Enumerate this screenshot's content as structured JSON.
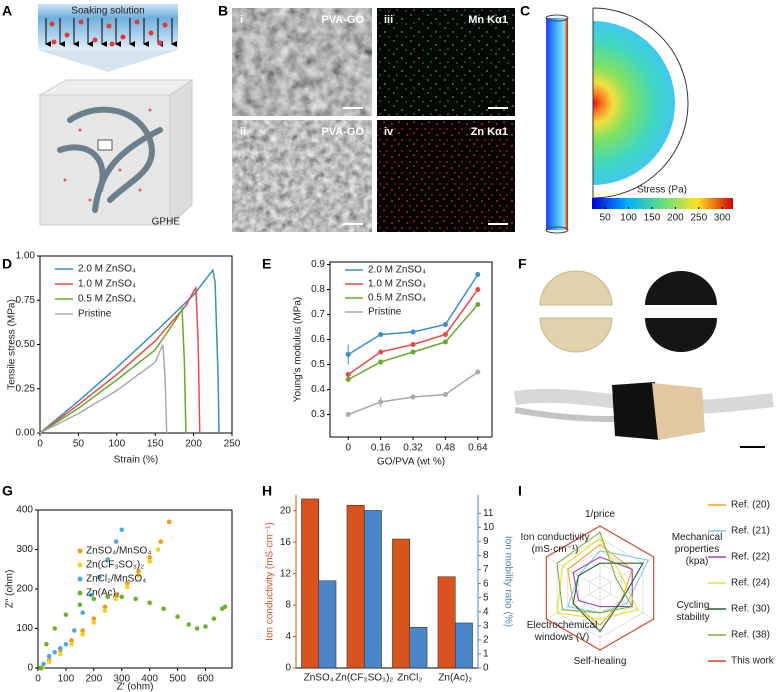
{
  "panel_labels": [
    "A",
    "B",
    "C",
    "D",
    "E",
    "F",
    "G",
    "H",
    "I"
  ],
  "panel_a": {
    "top_label": "Soaking solution",
    "bottom_label": "GPHE"
  },
  "panel_b": {
    "images": [
      {
        "index": "i",
        "label": "PVA-GO"
      },
      {
        "index": "iii",
        "label": "Mn Kα1"
      },
      {
        "index": "ii",
        "label": "PVA-GO"
      },
      {
        "index": "iv",
        "label": "Zn Kα1"
      }
    ]
  },
  "panel_c": {
    "colorbar_label": "Stress (Pa)",
    "colorbar_lim": [
      22,
      323
    ],
    "colorbar_ticks": [
      50,
      100,
      150,
      200,
      250,
      300
    ]
  },
  "chart_data": [
    {
      "type": "line",
      "x_label": "Strain (%)",
      "y_label": "Tensile stress (MPa)",
      "xlim": [
        0,
        250
      ],
      "xticks": [
        0,
        50,
        100,
        150,
        200,
        250
      ],
      "ylim": [
        0,
        1
      ],
      "yticks": [
        {
          "value": 0,
          "label": "0.00"
        },
        0.25,
        {
          "value": 0.5,
          "label": "0.50"
        },
        0.75,
        {
          "value": 1,
          "label": "1.00"
        }
      ],
      "series": [
        {
          "name": "2.0 M ZnSO₄",
          "color": "#3a8fc4",
          "x": [
            0,
            25,
            50,
            100,
            150,
            200,
            225,
            228,
            232,
            233
          ],
          "values": [
            0,
            0.09,
            0.18,
            0.37,
            0.57,
            0.78,
            0.92,
            0.85,
            0.3,
            0
          ]
        },
        {
          "name": "1.0 M ZnSO₄",
          "color": "#e84a4a",
          "x": [
            0,
            50,
            100,
            150,
            190,
            200,
            203,
            206,
            208
          ],
          "values": [
            0,
            0.16,
            0.33,
            0.52,
            0.72,
            0.8,
            0.82,
            0.5,
            0
          ]
        },
        {
          "name": "0.5 M ZnSO₄",
          "color": "#6aaa2a",
          "x": [
            0,
            50,
            100,
            150,
            180,
            185,
            188,
            190
          ],
          "values": [
            0,
            0.14,
            0.3,
            0.47,
            0.66,
            0.7,
            0.4,
            0
          ]
        },
        {
          "name": "Pristine",
          "color": "#aaaaaa",
          "x": [
            0,
            50,
            100,
            150,
            160,
            163,
            165
          ],
          "values": [
            0,
            0.11,
            0.24,
            0.4,
            0.5,
            0.3,
            0
          ]
        }
      ]
    },
    {
      "type": "line",
      "x_label": "GO/PVA (wt %)",
      "y_label": "Young's modulus (MPa)",
      "markers": true,
      "x": [
        0,
        0.16,
        0.32,
        0.48,
        0.64
      ],
      "xlim": [
        -0.09,
        0.71
      ],
      "xticks": [
        0,
        0.16,
        0.32,
        0.48,
        0.64
      ],
      "ylim": [
        0.21,
        0.91
      ],
      "yticks": [
        0.3,
        0.4,
        0.5,
        0.6,
        0.7,
        0.8,
        0.9
      ],
      "series": [
        {
          "name": "2.0 M ZnSO₄",
          "color": "#3a8fc4",
          "values": [
            0.54,
            0.62,
            0.63,
            0.66,
            0.86
          ],
          "errors": [
            0.04,
            0.01,
            0.01,
            0.01,
            0.01
          ]
        },
        {
          "name": "1.0 M ZnSO₄",
          "color": "#e84a4a",
          "values": [
            0.46,
            0.55,
            0.58,
            0.62,
            0.8
          ],
          "errors": [
            0.01,
            0.01,
            0.01,
            0.01,
            0.01
          ]
        },
        {
          "name": "0.5 M ZnSO₄",
          "color": "#6aaa2a",
          "values": [
            0.44,
            0.51,
            0.55,
            0.59,
            0.74
          ],
          "errors": [
            0.01,
            0.01,
            0.01,
            0.01,
            0.01
          ]
        },
        {
          "name": "Pristine",
          "color": "#aaaaaa",
          "values": [
            0.3,
            0.35,
            0.37,
            0.38,
            0.47
          ],
          "errors": [
            0.01,
            0.02,
            0.01,
            0.01,
            0.01
          ]
        }
      ]
    },
    {
      "type": "scatter",
      "x_label": "Z′ (ohm)",
      "y_label": "Z″ (ohm)",
      "xlim": [
        0,
        695
      ],
      "xticks": [
        0,
        100,
        200,
        300,
        400,
        500,
        600
      ],
      "ylim": [
        0,
        400
      ],
      "yticks": [
        0,
        100,
        200,
        300,
        400
      ],
      "series": [
        {
          "name": "ZnSO₄/MnSO₄",
          "color": "#f39c12",
          "x": [
            15,
            40,
            80,
            120,
            160,
            200,
            240,
            280,
            320,
            360,
            400,
            440,
            470
          ],
          "values": [
            0,
            20,
            45,
            70,
            95,
            125,
            155,
            185,
            215,
            245,
            280,
            320,
            370
          ]
        },
        {
          "name": "Zn(CF₃SO₃)₂",
          "color": "#f2d21b",
          "x": [
            15,
            40,
            80,
            120,
            160,
            200,
            240,
            280,
            320,
            360,
            400,
            430
          ],
          "values": [
            0,
            15,
            35,
            60,
            85,
            115,
            145,
            175,
            205,
            235,
            270,
            300
          ]
        },
        {
          "name": "ZnCl₂/MnSO₄",
          "color": "#4fa8de",
          "x": [
            10,
            20,
            40,
            60,
            80,
            100,
            130,
            160,
            190,
            220,
            250,
            280,
            300
          ],
          "values": [
            0,
            10,
            30,
            40,
            50,
            60,
            95,
            140,
            185,
            230,
            275,
            320,
            350
          ]
        },
        {
          "name": "Zn(Ac)₂",
          "color": "#6ab42c",
          "x": [
            10,
            30,
            60,
            100,
            150,
            200,
            250,
            300,
            350,
            400,
            450,
            500,
            540,
            570,
            600,
            630,
            660,
            670
          ],
          "values": [
            0,
            60,
            100,
            135,
            160,
            175,
            180,
            180,
            175,
            165,
            150,
            130,
            110,
            100,
            105,
            125,
            150,
            155
          ]
        }
      ]
    },
    {
      "type": "bar",
      "categories": [
        "ZnSO₄",
        "Zn(CF₃SO₃)₂",
        "ZnCl₂",
        "Zn(Ac)₂"
      ],
      "y_label": "Ion conductivity (mS·cm⁻¹)",
      "y2_label": "Ion mobility ratio (%)",
      "ylim": [
        0,
        22
      ],
      "yticks": [
        0,
        4,
        8,
        12,
        16,
        20
      ],
      "y2lim": [
        0,
        12.3
      ],
      "y2ticks": [
        0,
        1,
        2,
        3,
        4,
        5,
        6,
        7,
        8,
        9,
        10,
        11
      ],
      "series": [
        {
          "color": "#d9531e",
          "values": [
            21.5,
            20.7,
            16.4,
            11.6
          ]
        },
        {
          "color": "#4a86c8",
          "axis": "y2",
          "values": [
            6.2,
            11.2,
            2.9,
            3.2
          ]
        }
      ]
    },
    {
      "type": "radar",
      "rlim": [
        0,
        5
      ],
      "axes": [
        "1/price",
        "Mechanical properties (kpa)",
        "Cycling stability",
        "Self-healing",
        "Electrochemical windows (V)",
        "Ion conductivity (mS·cm⁻¹)"
      ],
      "series": [
        {
          "name": "Ref. (20)",
          "color": "#f0a030",
          "values": [
            3.5,
            3,
            2,
            3,
            2.5,
            3
          ]
        },
        {
          "name": "Ref. (21)",
          "color": "#7ec8e8",
          "values": [
            3,
            4.5,
            2.5,
            2,
            3,
            2
          ]
        },
        {
          "name": "Ref. (22)",
          "color": "#a040c0",
          "values": [
            2.5,
            3,
            3,
            1.5,
            2,
            2.5
          ]
        },
        {
          "name": "Ref. (24)",
          "color": "#e8e020",
          "values": [
            4,
            2,
            3.5,
            2.5,
            4,
            3.5
          ]
        },
        {
          "name": "Ref. (30)",
          "color": "#2a6030",
          "values": [
            2,
            4,
            2,
            3.5,
            2.5,
            2
          ]
        },
        {
          "name": "Ref. (38)",
          "color": "#80b040",
          "values": [
            4.5,
            1.5,
            3,
            2,
            3.5,
            4
          ]
        },
        {
          "name": "This work",
          "color": "#d04020",
          "values": [
            5,
            5,
            5,
            5,
            5,
            5
          ]
        }
      ]
    }
  ]
}
